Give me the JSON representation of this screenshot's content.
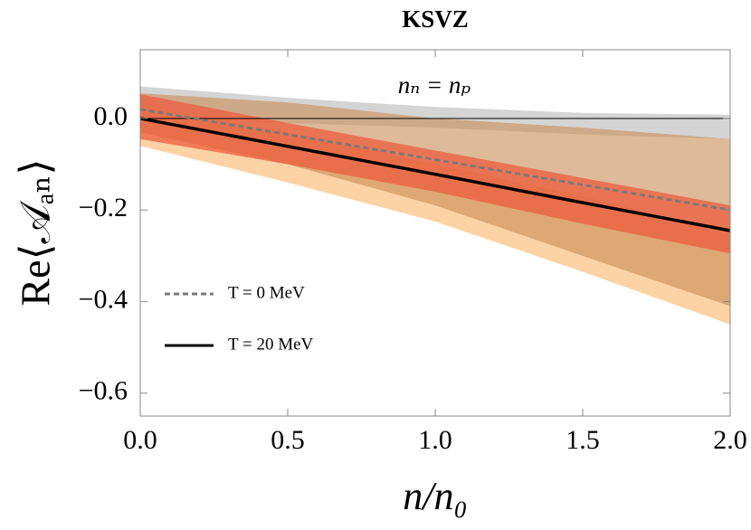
{
  "chart_data": {
    "type": "line",
    "title": "KSVZ",
    "annotation": "nₙ = nₚ",
    "xlabel": "n/n₀",
    "ylabel": "Re⟨𝒜ₐₙ⟩",
    "x": [
      0,
      0.5,
      1.0,
      1.5,
      2.0
    ],
    "bands": [
      {
        "color": "#d4d4d4",
        "upper": [
          0.07,
          0.045,
          0.025,
          0.012,
          0.008
        ],
        "lower": [
          0.0,
          -0.01,
          -0.02,
          -0.035,
          -0.045
        ]
      },
      {
        "color": "#fdd2a4",
        "upper": [
          0.03,
          -0.03,
          -0.1,
          -0.17,
          -0.25
        ],
        "lower": [
          -0.06,
          -0.14,
          -0.225,
          -0.335,
          -0.45
        ]
      },
      {
        "color": "rgba(200,140,85,0.6)",
        "upper": [
          0.055,
          0.035,
          0.0,
          -0.02,
          -0.045
        ],
        "lower": [
          -0.03,
          -0.1,
          -0.19,
          -0.3,
          -0.41
        ]
      },
      {
        "color": "rgba(236,92,62,0.75)",
        "upper": [
          0.053,
          -0.01,
          -0.07,
          -0.13,
          -0.19
        ],
        "lower": [
          -0.045,
          -0.1,
          -0.16,
          -0.23,
          -0.295
        ]
      }
    ],
    "series": [
      {
        "name": "T = 0 MeV",
        "color": "#7a7a7a",
        "line_style": "dashed",
        "values": [
          0.02,
          -0.035,
          -0.09,
          -0.145,
          -0.2
        ]
      },
      {
        "name": "T = 20 MeV",
        "color": "#000000",
        "line_style": "solid",
        "values": [
          0,
          -0.061,
          -0.122,
          -0.184,
          -0.245
        ]
      }
    ],
    "reference_line": 0,
    "xlim": [
      0,
      2
    ],
    "ylim": [
      -0.65,
      0.15
    ],
    "xticks": [
      {
        "value": 0,
        "label": "0.0"
      },
      {
        "value": 0.5,
        "label": "0.5"
      },
      {
        "value": 1.0,
        "label": "1.0"
      },
      {
        "value": 1.5,
        "label": "1.5"
      },
      {
        "value": 2.0,
        "label": "2.0"
      }
    ],
    "yticks": [
      {
        "value": 0,
        "label": "0.0"
      },
      {
        "value": -0.2,
        "label": "−0.2"
      },
      {
        "value": -0.4,
        "label": "−0.4"
      },
      {
        "value": -0.6,
        "label": "−0.6"
      }
    ],
    "legend": "center-left"
  }
}
